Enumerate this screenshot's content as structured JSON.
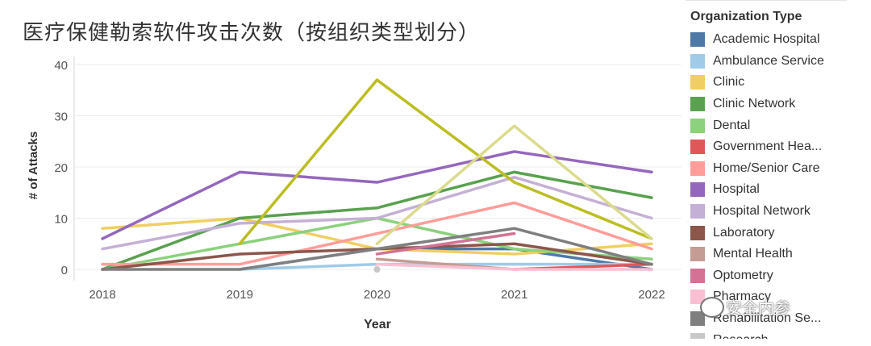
{
  "title": "医疗保健勒索软件攻击次数（按组织类型划分）",
  "watermark": "安全内参",
  "chart_data": {
    "type": "line",
    "x": [
      "2018",
      "2019",
      "2020",
      "2021",
      "2022"
    ],
    "xlabel": "Year",
    "ylabel": "# of Attacks",
    "ylim": [
      0,
      40
    ],
    "yticks": [
      0,
      10,
      20,
      30,
      40
    ],
    "grid": "horizontal",
    "legend_title": "Organization Type",
    "legend_position": "right",
    "series": [
      {
        "name": "Academic Hospital",
        "color": "#4e79a7",
        "values": [
          null,
          0,
          4,
          4,
          0
        ]
      },
      {
        "name": "Ambulance Service",
        "color": "#a0cbe8",
        "values": [
          null,
          0,
          1,
          1,
          1
        ]
      },
      {
        "name": "Clinic",
        "color": "#f1ce63",
        "values": [
          8,
          10,
          4,
          3,
          5
        ]
      },
      {
        "name": "Clinic Network",
        "color": "#59a14f",
        "values": [
          0,
          10,
          12,
          19,
          14
        ]
      },
      {
        "name": "Dental",
        "color": "#8cd17d",
        "values": [
          0,
          5,
          10,
          4,
          2
        ]
      },
      {
        "name": "Government Hea...",
        "color": "#e15759",
        "values": [
          null,
          null,
          null,
          0,
          1
        ]
      },
      {
        "name": "Home/Senior Care",
        "color": "#ff9d9a",
        "values": [
          1,
          1,
          7,
          13,
          4
        ]
      },
      {
        "name": "Hospital",
        "color": "#9467bd",
        "values": [
          6,
          19,
          17,
          23,
          19
        ]
      },
      {
        "name": "Hospital Network",
        "color": "#c5b0d5",
        "values": [
          4,
          9,
          10,
          18,
          10
        ]
      },
      {
        "name": "Laboratory",
        "color": "#8c564b",
        "values": [
          0,
          3,
          4,
          5,
          1
        ]
      },
      {
        "name": "Mental Health",
        "color": "#c49c94",
        "values": [
          null,
          null,
          2,
          0,
          null
        ]
      },
      {
        "name": "Optometry",
        "color": "#d37295",
        "values": [
          null,
          null,
          3,
          7,
          null
        ]
      },
      {
        "name": "Pharmacy",
        "color": "#fabfd2",
        "values": [
          null,
          null,
          1,
          0,
          0
        ]
      },
      {
        "name": "Rehabilitation Se...",
        "color": "#7f7f7f",
        "values": [
          0,
          0,
          4,
          8,
          1
        ]
      },
      {
        "name": "Research",
        "color": "#c7c7c7",
        "values": [
          null,
          null,
          0,
          null,
          null
        ]
      },
      {
        "name": "",
        "color": "#bcbd22",
        "values": [
          null,
          5,
          37,
          17,
          6
        ]
      },
      {
        "name": "",
        "color": "#dbdb8d",
        "values": [
          null,
          null,
          5,
          28,
          6
        ]
      }
    ]
  }
}
